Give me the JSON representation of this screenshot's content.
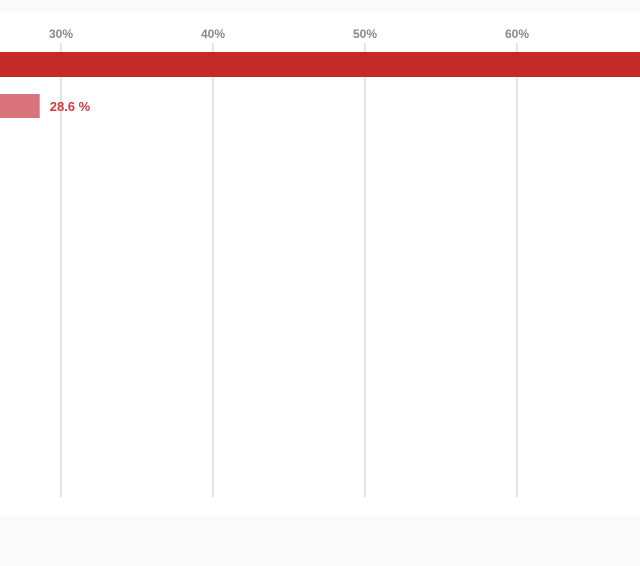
{
  "chart_data": {
    "type": "bar",
    "orientation": "horizontal",
    "categories": [
      "",
      ""
    ],
    "values": [
      null,
      28.6
    ],
    "value_labels": [
      "",
      "28.6 %"
    ],
    "note_values": "first bar extends beyond the visible right edge (greater than ~68%)",
    "xlim": [
      26,
      68.1
    ],
    "x_ticks": [
      30,
      40,
      50,
      60
    ],
    "x_tick_labels": [
      "30%",
      "40%",
      "50%",
      "60%"
    ],
    "grid": true,
    "colors": [
      "#c42b27",
      "#d9737a"
    ],
    "label_color": "#d2393f"
  }
}
